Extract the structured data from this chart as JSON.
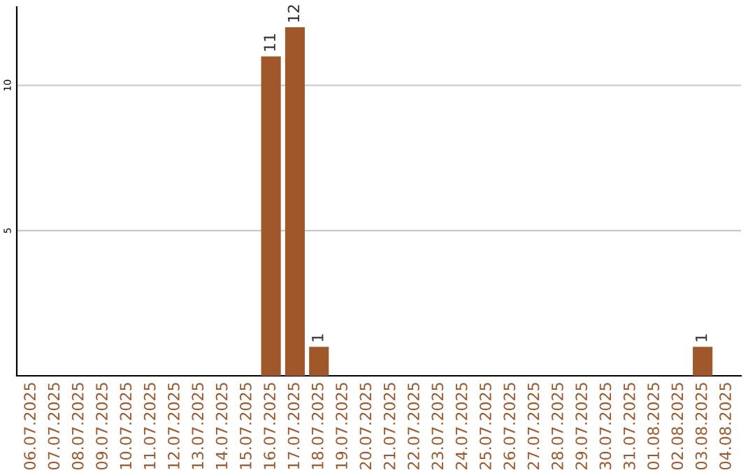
{
  "chart_data": {
    "type": "bar",
    "categories": [
      "06.07.2025",
      "07.07.2025",
      "08.07.2025",
      "09.07.2025",
      "10.07.2025",
      "11.07.2025",
      "12.07.2025",
      "13.07.2025",
      "14.07.2025",
      "15.07.2025",
      "16.07.2025",
      "17.07.2025",
      "18.07.2025",
      "19.07.2025",
      "20.07.2025",
      "21.07.2025",
      "22.07.2025",
      "23.07.2025",
      "24.07.2025",
      "25.07.2025",
      "26.07.2025",
      "27.07.2025",
      "28.07.2025",
      "29.07.2025",
      "30.07.2025",
      "31.07.2025",
      "01.08.2025",
      "02.08.2025",
      "03.08.2025",
      "04.08.2025"
    ],
    "values": [
      0,
      0,
      0,
      0,
      0,
      0,
      0,
      0,
      0,
      0,
      11,
      12,
      1,
      0,
      0,
      0,
      0,
      0,
      0,
      0,
      0,
      0,
      0,
      0,
      0,
      0,
      0,
      0,
      1,
      0
    ],
    "value_labels": [
      null,
      null,
      null,
      null,
      null,
      null,
      null,
      null,
      null,
      null,
      "11",
      "12",
      "1",
      null,
      null,
      null,
      null,
      null,
      null,
      null,
      null,
      null,
      null,
      null,
      null,
      null,
      null,
      null,
      "1",
      null
    ],
    "color": "#a0582a",
    "ylim": [
      0,
      12.7
    ],
    "yticks": [
      5,
      10
    ],
    "grid": "y"
  }
}
